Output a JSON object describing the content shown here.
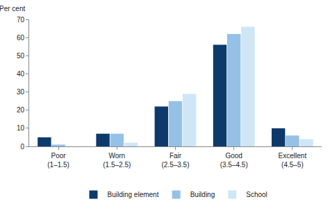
{
  "chart_data": {
    "type": "bar",
    "y_label": "Per cent",
    "categories": [
      "Poor (1–1.5)",
      "Worn (1.5–2.5)",
      "Fair (2.5–3.5)",
      "Good (3.5–4.5)",
      "Excellent (4.5–5)"
    ],
    "series": [
      {
        "name": "Building element",
        "color": "#0d3a6b",
        "values": [
          5,
          7,
          22,
          56,
          10
        ]
      },
      {
        "name": "Building",
        "color": "#95c1e6",
        "values": [
          1,
          7,
          25,
          62,
          6
        ]
      },
      {
        "name": "School",
        "color": "#cfe6f7",
        "values": [
          0,
          2,
          29,
          66,
          4
        ]
      }
    ],
    "ylim": [
      0,
      70
    ],
    "yticks": [
      0,
      10,
      20,
      30,
      40,
      50,
      60,
      70
    ],
    "grid": false,
    "legend": "bottom"
  }
}
